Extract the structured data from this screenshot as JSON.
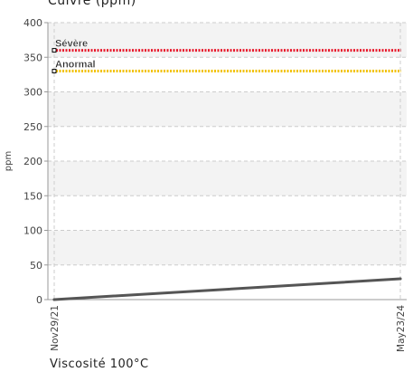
{
  "chart_data": {
    "type": "line",
    "title": "Cuivre (ppm)",
    "xlabel": "",
    "ylabel": "ppm",
    "x": [
      "Nov29/21",
      "May23/24"
    ],
    "series": [
      {
        "values": [
          0,
          30
        ],
        "color": "#555555"
      }
    ],
    "ylim": [
      0,
      400
    ],
    "yticks": [
      0,
      50,
      100,
      150,
      200,
      250,
      300,
      350,
      400
    ],
    "thresholds": [
      {
        "label": "Sévère",
        "value": 360,
        "color": "#e8192c"
      },
      {
        "label": "Anormal",
        "value": 330,
        "color": "#f2c200"
      }
    ],
    "grid": true,
    "legend": "none"
  },
  "footer": {
    "text": "Viscosité 100°C"
  }
}
